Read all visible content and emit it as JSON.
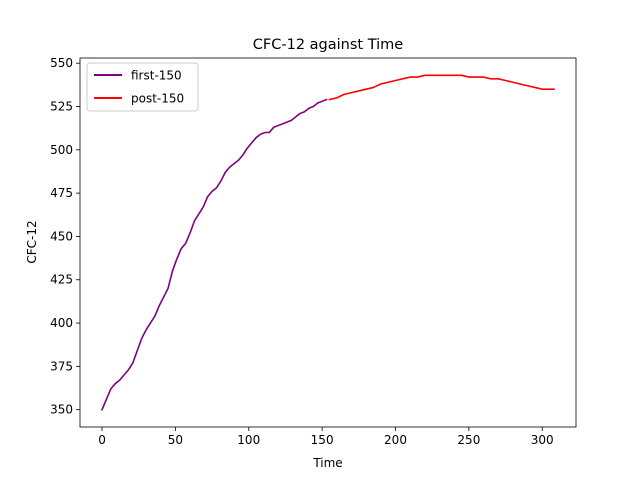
{
  "chart_data": {
    "type": "line",
    "title": "CFC-12 against Time",
    "xlabel": "Time",
    "ylabel": "CFC-12",
    "xlim": [
      -15,
      323
    ],
    "ylim": [
      340,
      553
    ],
    "xticks": [
      0,
      50,
      100,
      150,
      200,
      250,
      300
    ],
    "yticks": [
      350,
      375,
      400,
      425,
      450,
      475,
      500,
      525,
      550
    ],
    "grid": false,
    "legend_position": "top-left",
    "series": [
      {
        "name": "first-150",
        "color": "#800080",
        "x": [
          0,
          3,
          6,
          9,
          12,
          15,
          18,
          21,
          24,
          27,
          30,
          33,
          36,
          39,
          42,
          45,
          48,
          51,
          54,
          57,
          60,
          63,
          66,
          69,
          72,
          75,
          78,
          81,
          84,
          87,
          90,
          93,
          96,
          99,
          102,
          105,
          108,
          111,
          114,
          117,
          120,
          123,
          126,
          129,
          132,
          135,
          138,
          141,
          144,
          147,
          150,
          153
        ],
        "y": [
          350,
          356,
          362,
          365,
          367,
          370,
          373,
          377,
          384,
          391,
          396,
          400,
          404,
          410,
          415,
          420,
          430,
          437,
          443,
          446,
          452,
          459,
          463,
          467,
          473,
          476,
          478,
          482,
          487,
          490,
          492,
          494,
          497,
          501,
          504,
          507,
          509,
          510,
          510,
          513,
          514,
          515,
          516,
          517,
          519,
          521,
          522,
          524,
          525,
          527,
          528,
          529
        ]
      },
      {
        "name": "post-150",
        "color": "#ff0000",
        "x": [
          155,
          160,
          165,
          170,
          175,
          180,
          185,
          190,
          195,
          200,
          205,
          210,
          215,
          220,
          225,
          230,
          235,
          240,
          245,
          250,
          255,
          260,
          265,
          270,
          275,
          280,
          285,
          290,
          295,
          300,
          305,
          308
        ],
        "y": [
          529,
          530,
          532,
          533,
          534,
          535,
          536,
          538,
          539,
          540,
          541,
          542,
          542,
          543,
          543,
          543,
          543,
          543,
          543,
          542,
          542,
          542,
          541,
          541,
          540,
          539,
          538,
          537,
          536,
          535,
          535,
          535
        ]
      }
    ]
  }
}
